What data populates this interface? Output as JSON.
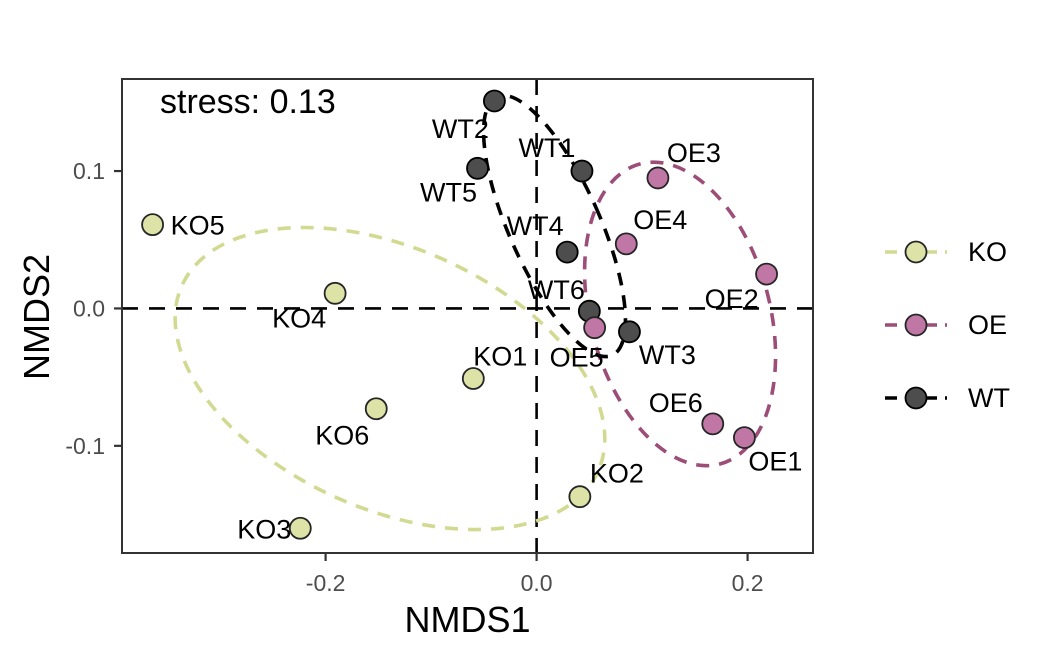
{
  "chart_data": {
    "type": "scatter",
    "title": "",
    "annotation": "stress: 0.13",
    "xlabel": "NMDS1",
    "ylabel": "NMDS2",
    "xlim": [
      -0.393,
      0.262
    ],
    "ylim": [
      -0.178,
      0.167
    ],
    "grid": false,
    "legend_position": "right",
    "x_ticks": [
      {
        "value": -0.2,
        "label": "-0.2"
      },
      {
        "value": 0.0,
        "label": "0.0"
      },
      {
        "value": 0.2,
        "label": "0.2"
      }
    ],
    "y_ticks": [
      {
        "value": 0.1,
        "label": "0.1"
      },
      {
        "value": 0.0,
        "label": "0.0"
      },
      {
        "value": -0.1,
        "label": "-0.1"
      }
    ],
    "reference_lines": [
      {
        "axis": "h",
        "value": 0.0
      },
      {
        "axis": "v",
        "value": 0.0
      }
    ],
    "series": [
      {
        "name": "KO",
        "color": "#dde3a6",
        "edge_color": "#262626",
        "ellipse_color": "#d2da92",
        "ellipse": {
          "cx": -0.139,
          "cy": -0.051,
          "rx": 0.216,
          "ry": 0.095,
          "angle_deg": 24
        },
        "points": [
          {
            "label": "KO5",
            "x": -0.364,
            "y": 0.061,
            "label_dx": 45,
            "label_dy": 0
          },
          {
            "label": "KO4",
            "x": -0.191,
            "y": 0.011,
            "label_dx": -36,
            "label_dy": 24
          },
          {
            "label": "KO1",
            "x": -0.06,
            "y": -0.051,
            "label_dx": 27,
            "label_dy": -23
          },
          {
            "label": "KO6",
            "x": -0.152,
            "y": -0.073,
            "label_dx": -34,
            "label_dy": 26
          },
          {
            "label": "KO3",
            "x": -0.224,
            "y": -0.16,
            "label_dx": -36,
            "label_dy": 0
          },
          {
            "label": "KO2",
            "x": 0.041,
            "y": -0.137,
            "label_dx": 37,
            "label_dy": -24
          }
        ]
      },
      {
        "name": "OE",
        "color": "#c077a6",
        "edge_color": "#262626",
        "ellipse_color": "#9c4d78",
        "ellipse": {
          "cx": 0.136,
          "cy": -0.004,
          "rx": 0.085,
          "ry": 0.113,
          "angle_deg": -15
        },
        "points": [
          {
            "label": "OE3",
            "x": 0.115,
            "y": 0.095,
            "label_dx": 36,
            "label_dy": -26
          },
          {
            "label": "OE4",
            "x": 0.085,
            "y": 0.047,
            "label_dx": 34,
            "label_dy": -25
          },
          {
            "label": "OE2",
            "x": 0.218,
            "y": 0.025,
            "label_dx": -35,
            "label_dy": 24
          },
          {
            "label": "OE5",
            "x": 0.055,
            "y": -0.014,
            "label_dx": -18,
            "label_dy": 29
          },
          {
            "label": "OE6",
            "x": 0.167,
            "y": -0.084,
            "label_dx": -37,
            "label_dy": -22
          },
          {
            "label": "OE1",
            "x": 0.197,
            "y": -0.094,
            "label_dx": 31,
            "label_dy": 23
          }
        ]
      },
      {
        "name": "WT",
        "color": "#4d4d4d",
        "edge_color": "#000000",
        "ellipse_color": "#000000",
        "ellipse": {
          "cx": 0.017,
          "cy": 0.06,
          "rx": 0.043,
          "ry": 0.103,
          "angle_deg": -24
        },
        "points": [
          {
            "label": "WT2",
            "x": -0.04,
            "y": 0.151,
            "label_dx": -34,
            "label_dy": 27
          },
          {
            "label": "WT5",
            "x": -0.056,
            "y": 0.102,
            "label_dx": -29,
            "label_dy": 23
          },
          {
            "label": "WT1",
            "x": 0.043,
            "y": 0.1,
            "label_dx": -35,
            "label_dy": -24
          },
          {
            "label": "WT4",
            "x": 0.029,
            "y": 0.041,
            "label_dx": -32,
            "label_dy": -27
          },
          {
            "label": "WT6",
            "x": 0.05,
            "y": -0.002,
            "label_dx": -33,
            "label_dy": -22
          },
          {
            "label": "WT3",
            "x": 0.088,
            "y": -0.017,
            "label_dx": 38,
            "label_dy": 22
          }
        ]
      }
    ]
  }
}
